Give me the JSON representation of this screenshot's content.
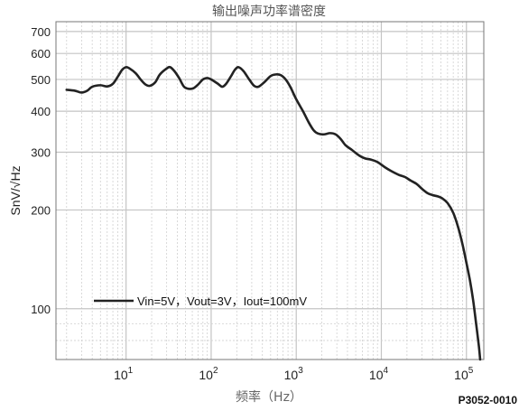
{
  "chart_data": {
    "type": "line",
    "title": "输出噪声功率谱密度",
    "xlabel": "频率（Hz）",
    "ylabel": "SnV/√Hz",
    "xscale": "log",
    "yscale": "log",
    "xlim": [
      1.5,
      160000
    ],
    "ylim": [
      70,
      750
    ],
    "grid": true,
    "legend_position": "lower-left",
    "x_ticks": [
      {
        "base": "10",
        "exp": "1"
      },
      {
        "base": "10",
        "exp": "2"
      },
      {
        "base": "10",
        "exp": "3"
      },
      {
        "base": "10",
        "exp": "4"
      },
      {
        "base": "10",
        "exp": "5"
      }
    ],
    "y_ticks": [
      "100",
      "200",
      "300",
      "400",
      "500",
      "600",
      "700"
    ],
    "series": [
      {
        "name": "Vin=5V，Vout=3V，Iout=100mV",
        "color": "#222222",
        "points": [
          [
            2,
            465
          ],
          [
            2.5,
            462
          ],
          [
            3,
            456
          ],
          [
            3.5,
            462
          ],
          [
            4,
            475
          ],
          [
            5,
            480
          ],
          [
            6,
            476
          ],
          [
            7,
            485
          ],
          [
            8,
            510
          ],
          [
            9,
            535
          ],
          [
            10,
            545
          ],
          [
            11,
            540
          ],
          [
            13,
            522
          ],
          [
            15,
            498
          ],
          [
            17,
            482
          ],
          [
            19,
            478
          ],
          [
            22,
            490
          ],
          [
            25,
            518
          ],
          [
            30,
            540
          ],
          [
            33,
            545
          ],
          [
            37,
            530
          ],
          [
            42,
            505
          ],
          [
            48,
            475
          ],
          [
            55,
            468
          ],
          [
            62,
            470
          ],
          [
            70,
            482
          ],
          [
            80,
            500
          ],
          [
            90,
            505
          ],
          [
            100,
            500
          ],
          [
            120,
            485
          ],
          [
            135,
            475
          ],
          [
            150,
            485
          ],
          [
            170,
            510
          ],
          [
            190,
            535
          ],
          [
            210,
            545
          ],
          [
            240,
            530
          ],
          [
            280,
            500
          ],
          [
            320,
            478
          ],
          [
            360,
            475
          ],
          [
            420,
            490
          ],
          [
            500,
            512
          ],
          [
            580,
            518
          ],
          [
            660,
            515
          ],
          [
            750,
            500
          ],
          [
            850,
            475
          ],
          [
            1000,
            435
          ],
          [
            1200,
            400
          ],
          [
            1400,
            370
          ],
          [
            1600,
            350
          ],
          [
            1800,
            342
          ],
          [
            2100,
            340
          ],
          [
            2500,
            343
          ],
          [
            2900,
            340
          ],
          [
            3300,
            330
          ],
          [
            3800,
            315
          ],
          [
            4500,
            305
          ],
          [
            5500,
            293
          ],
          [
            6500,
            287
          ],
          [
            7500,
            285
          ],
          [
            9000,
            280
          ],
          [
            11000,
            270
          ],
          [
            13000,
            263
          ],
          [
            16000,
            256
          ],
          [
            19000,
            252
          ],
          [
            22000,
            246
          ],
          [
            26000,
            240
          ],
          [
            30000,
            232
          ],
          [
            35000,
            225
          ],
          [
            40000,
            222
          ],
          [
            46000,
            220
          ],
          [
            52000,
            217
          ],
          [
            60000,
            210
          ],
          [
            70000,
            196
          ],
          [
            80000,
            177
          ],
          [
            90000,
            157
          ],
          [
            100000,
            138
          ],
          [
            110000,
            122
          ],
          [
            120000,
            106
          ],
          [
            130000,
            90
          ],
          [
            140000,
            77
          ],
          [
            145000,
            70
          ]
        ]
      }
    ]
  },
  "figure_code": "P3052-0010"
}
